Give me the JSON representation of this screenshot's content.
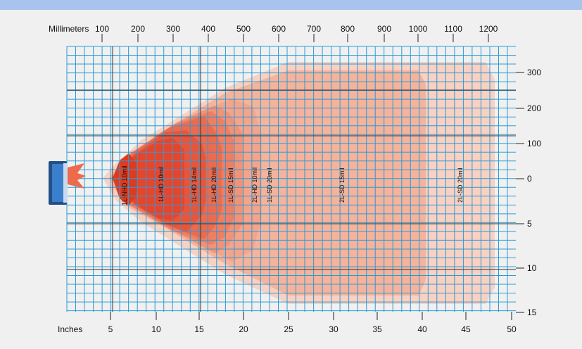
{
  "axes": {
    "top_label": "Millimeters",
    "bottom_label": "Inches",
    "mm_ticks": [
      "100",
      "200",
      "300",
      "400",
      "500",
      "600",
      "700",
      "800",
      "900",
      "1000",
      "1100",
      "1200"
    ],
    "inch_ticks": [
      "5",
      "10",
      "15",
      "20",
      "25",
      "30",
      "35",
      "40",
      "45",
      "50"
    ],
    "right_mm_ticks": [
      "300",
      "200",
      "100",
      "0"
    ],
    "right_inch_ticks": [
      "5",
      "10",
      "15"
    ]
  },
  "zones": [
    {
      "label": "1L-NHD 10mil",
      "color": "#e03a1e"
    },
    {
      "label": "1L-HD 10mil",
      "color": "#e6452c"
    },
    {
      "label": "1L-HD 14mil",
      "color": "#ea553a"
    },
    {
      "label": "1L-HD 20mil",
      "color": "#ee6a4d"
    },
    {
      "label": "1L-SD 15mil",
      "color": "#f07e62"
    },
    {
      "label": "2L-HD 10mil",
      "color": "#f29277"
    },
    {
      "label": "1L-SD 20mil",
      "color": "#f4a48b"
    },
    {
      "label": "2L-SD 15mil",
      "color": "#f5b39c"
    },
    {
      "label": "2L-SD 20mil",
      "color": "#f8d1c3"
    }
  ],
  "colors": {
    "grid": "#2a9bd6",
    "background": "#f0f0f0",
    "header_bar": "#a9c4ec",
    "scanner_body": "#2f6eb5"
  },
  "icons": [
    "scanner-icon"
  ]
}
